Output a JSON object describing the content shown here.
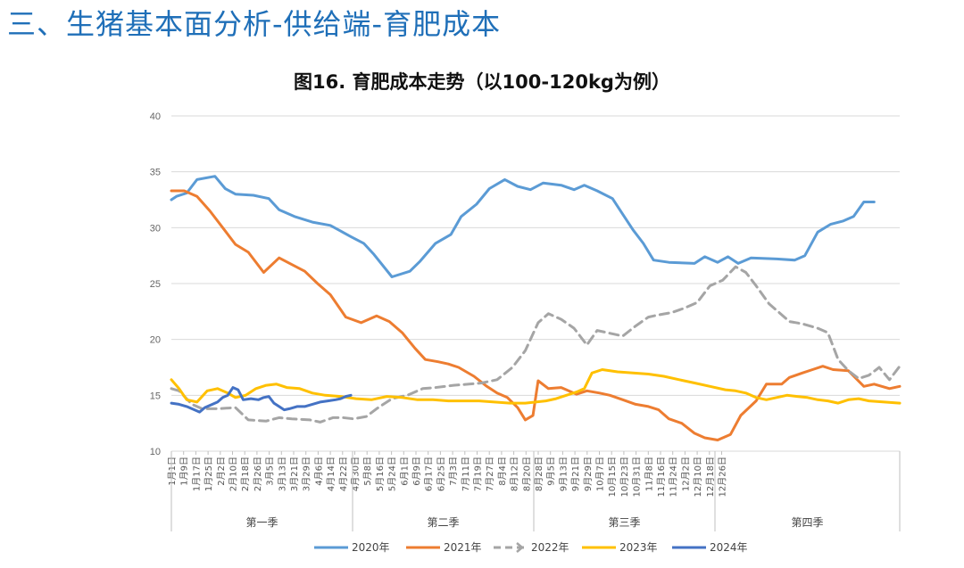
{
  "page": {
    "title": "三、生猪基本面分析-供给端-育肥成本"
  },
  "chart_data": {
    "type": "line",
    "title": "图16. 育肥成本走势（以100-120kg为例）",
    "xlabel": "",
    "ylabel": "",
    "ylim": [
      10,
      40
    ],
    "yticks": [
      10,
      15,
      20,
      25,
      30,
      35,
      40
    ],
    "grid": true,
    "x_tick_labels": [
      "1月1日",
      "1月9日",
      "1月17日",
      "1月25日",
      "2月2日",
      "2月10日",
      "2月18日",
      "2月26日",
      "3月5日",
      "3月13日",
      "3月21日",
      "3月29日",
      "4月6日",
      "4月14日",
      "4月22日",
      "4月30日",
      "5月8日",
      "5月16日",
      "5月24日",
      "6月1日",
      "6月9日",
      "6月17日",
      "6月25日",
      "7月3日",
      "7月11日",
      "7月19日",
      "7月27日",
      "8月4日",
      "8月12日",
      "8月20日",
      "8月28日",
      "9月5日",
      "9月13日",
      "9月21日",
      "9月29日",
      "10月7日",
      "10月15日",
      "10月23日",
      "10月31日",
      "11月8日",
      "11月16日",
      "11月24日",
      "12月2日",
      "12月10日",
      "12月18日",
      "12月26日"
    ],
    "seasons": [
      "第一季",
      "第二季",
      "第三季",
      "第四季"
    ],
    "legend_position": "bottom",
    "series": [
      {
        "name": "2020年",
        "color": "#5b9bd5",
        "dash": "solid",
        "width": 3,
        "points": [
          [
            0,
            32.5
          ],
          [
            2,
            32.8
          ],
          [
            6,
            33.1
          ],
          [
            10,
            34.3
          ],
          [
            17,
            34.6
          ],
          [
            21,
            33.5
          ],
          [
            25,
            33.0
          ],
          [
            32,
            32.9
          ],
          [
            38,
            32.6
          ],
          [
            42,
            31.6
          ],
          [
            48,
            31.0
          ],
          [
            55,
            30.5
          ],
          [
            62,
            30.2
          ],
          [
            66,
            29.7
          ],
          [
            70,
            29.2
          ],
          [
            75,
            28.6
          ],
          [
            79,
            27.6
          ],
          [
            86,
            25.6
          ],
          [
            93,
            26.1
          ],
          [
            97,
            27.0
          ],
          [
            103,
            28.6
          ],
          [
            109,
            29.4
          ],
          [
            113,
            31.0
          ],
          [
            119,
            32.1
          ],
          [
            124,
            33.5
          ],
          [
            130,
            34.3
          ],
          [
            135,
            33.7
          ],
          [
            140,
            33.4
          ],
          [
            145,
            34.0
          ],
          [
            152,
            33.8
          ],
          [
            157,
            33.4
          ],
          [
            161,
            33.8
          ],
          [
            166,
            33.3
          ],
          [
            172,
            32.6
          ],
          [
            176,
            31.2
          ],
          [
            180,
            29.8
          ],
          [
            184,
            28.6
          ],
          [
            188,
            27.1
          ],
          [
            194,
            26.9
          ],
          [
            204,
            26.8
          ],
          [
            208,
            27.4
          ],
          [
            213,
            26.9
          ],
          [
            217,
            27.4
          ],
          [
            221,
            26.8
          ],
          [
            226,
            27.3
          ],
          [
            236,
            27.2
          ],
          [
            243,
            27.1
          ],
          [
            247,
            27.5
          ],
          [
            252,
            29.6
          ],
          [
            257,
            30.3
          ],
          [
            262,
            30.6
          ],
          [
            266,
            31.0
          ],
          [
            270,
            32.3
          ],
          [
            274,
            32.3
          ]
        ]
      },
      {
        "name": "2021年",
        "color": "#ed7d31",
        "dash": "solid",
        "width": 3,
        "points": [
          [
            0,
            33.3
          ],
          [
            5,
            33.3
          ],
          [
            10,
            32.8
          ],
          [
            15,
            31.5
          ],
          [
            20,
            30.0
          ],
          [
            25,
            28.5
          ],
          [
            30,
            27.8
          ],
          [
            36,
            26.0
          ],
          [
            42,
            27.3
          ],
          [
            47,
            26.7
          ],
          [
            52,
            26.1
          ],
          [
            57,
            25.0
          ],
          [
            62,
            24.0
          ],
          [
            68,
            22.0
          ],
          [
            74,
            21.5
          ],
          [
            80,
            22.1
          ],
          [
            85,
            21.6
          ],
          [
            90,
            20.6
          ],
          [
            95,
            19.2
          ],
          [
            99,
            18.2
          ],
          [
            104,
            18.0
          ],
          [
            108,
            17.8
          ],
          [
            112,
            17.5
          ],
          [
            118,
            16.7
          ],
          [
            123,
            15.8
          ],
          [
            127,
            15.2
          ],
          [
            131,
            14.8
          ],
          [
            135,
            13.9
          ],
          [
            138,
            12.8
          ],
          [
            141,
            13.2
          ],
          [
            143,
            16.3
          ],
          [
            147,
            15.6
          ],
          [
            152,
            15.7
          ],
          [
            158,
            15.1
          ],
          [
            162,
            15.4
          ],
          [
            167,
            15.2
          ],
          [
            171,
            15.0
          ],
          [
            176,
            14.6
          ],
          [
            181,
            14.2
          ],
          [
            186,
            14.0
          ],
          [
            190,
            13.7
          ],
          [
            194,
            12.9
          ],
          [
            199,
            12.5
          ],
          [
            204,
            11.6
          ],
          [
            208,
            11.2
          ],
          [
            213,
            11.0
          ],
          [
            218,
            11.5
          ],
          [
            222,
            13.2
          ],
          [
            228,
            14.5
          ],
          [
            232,
            16.0
          ],
          [
            238,
            16.0
          ],
          [
            241,
            16.6
          ],
          [
            246,
            17.0
          ],
          [
            250,
            17.3
          ],
          [
            254,
            17.6
          ],
          [
            258,
            17.3
          ],
          [
            264,
            17.2
          ],
          [
            270,
            15.8
          ],
          [
            274,
            16.0
          ],
          [
            280,
            15.6
          ],
          [
            284,
            15.8
          ]
        ]
      },
      {
        "name": "2022年",
        "color": "#a5a5a5",
        "dash": "dashed",
        "width": 3,
        "points": [
          [
            0,
            15.6
          ],
          [
            3,
            15.4
          ],
          [
            8,
            14.2
          ],
          [
            12,
            13.8
          ],
          [
            18,
            13.8
          ],
          [
            25,
            13.9
          ],
          [
            30,
            12.8
          ],
          [
            37,
            12.7
          ],
          [
            42,
            13.0
          ],
          [
            47,
            12.9
          ],
          [
            54,
            12.8
          ],
          [
            58,
            12.6
          ],
          [
            63,
            13.0
          ],
          [
            67,
            13.0
          ],
          [
            71,
            12.9
          ],
          [
            76,
            13.1
          ],
          [
            80,
            13.8
          ],
          [
            86,
            14.7
          ],
          [
            92,
            15.0
          ],
          [
            98,
            15.6
          ],
          [
            103,
            15.7
          ],
          [
            110,
            15.9
          ],
          [
            116,
            16.0
          ],
          [
            121,
            16.1
          ],
          [
            127,
            16.4
          ],
          [
            133,
            17.5
          ],
          [
            138,
            19.0
          ],
          [
            143,
            21.5
          ],
          [
            147,
            22.3
          ],
          [
            152,
            21.8
          ],
          [
            157,
            21.0
          ],
          [
            162,
            19.5
          ],
          [
            166,
            20.8
          ],
          [
            170,
            20.6
          ],
          [
            176,
            20.3
          ],
          [
            181,
            21.2
          ],
          [
            186,
            22.0
          ],
          [
            190,
            22.2
          ],
          [
            195,
            22.4
          ],
          [
            200,
            22.8
          ],
          [
            205,
            23.3
          ],
          [
            210,
            24.8
          ],
          [
            215,
            25.3
          ],
          [
            220,
            26.5
          ],
          [
            224,
            26.0
          ],
          [
            228,
            24.8
          ],
          [
            233,
            23.2
          ],
          [
            237,
            22.4
          ],
          [
            241,
            21.6
          ],
          [
            246,
            21.4
          ],
          [
            252,
            21.0
          ],
          [
            256,
            20.6
          ],
          [
            260,
            18.2
          ],
          [
            264,
            17.2
          ],
          [
            268,
            16.5
          ],
          [
            272,
            16.8
          ],
          [
            276,
            17.5
          ],
          [
            280,
            16.4
          ],
          [
            284,
            17.6
          ]
        ]
      },
      {
        "name": "2023年",
        "color": "#ffc000",
        "dash": "solid",
        "width": 3,
        "points": [
          [
            0,
            16.4
          ],
          [
            3,
            15.6
          ],
          [
            6,
            14.6
          ],
          [
            10,
            14.4
          ],
          [
            14,
            15.4
          ],
          [
            18,
            15.6
          ],
          [
            22,
            15.2
          ],
          [
            25,
            14.8
          ],
          [
            29,
            15.0
          ],
          [
            33,
            15.6
          ],
          [
            37,
            15.9
          ],
          [
            41,
            16.0
          ],
          [
            45,
            15.7
          ],
          [
            50,
            15.6
          ],
          [
            55,
            15.2
          ],
          [
            60,
            15.0
          ],
          [
            66,
            14.9
          ],
          [
            72,
            14.7
          ],
          [
            78,
            14.6
          ],
          [
            84,
            14.9
          ],
          [
            90,
            14.8
          ],
          [
            96,
            14.6
          ],
          [
            102,
            14.6
          ],
          [
            108,
            14.5
          ],
          [
            114,
            14.5
          ],
          [
            120,
            14.5
          ],
          [
            126,
            14.4
          ],
          [
            132,
            14.3
          ],
          [
            138,
            14.3
          ],
          [
            142,
            14.4
          ],
          [
            146,
            14.5
          ],
          [
            150,
            14.7
          ],
          [
            154,
            15.0
          ],
          [
            158,
            15.3
          ],
          [
            161,
            15.6
          ],
          [
            164,
            17.0
          ],
          [
            168,
            17.3
          ],
          [
            174,
            17.1
          ],
          [
            180,
            17.0
          ],
          [
            186,
            16.9
          ],
          [
            192,
            16.7
          ],
          [
            198,
            16.4
          ],
          [
            204,
            16.1
          ],
          [
            210,
            15.8
          ],
          [
            216,
            15.5
          ],
          [
            220,
            15.4
          ],
          [
            224,
            15.2
          ],
          [
            228,
            14.8
          ],
          [
            232,
            14.6
          ],
          [
            236,
            14.8
          ],
          [
            240,
            15.0
          ],
          [
            244,
            14.9
          ],
          [
            248,
            14.8
          ],
          [
            252,
            14.6
          ],
          [
            256,
            14.5
          ],
          [
            260,
            14.3
          ],
          [
            264,
            14.6
          ],
          [
            268,
            14.7
          ],
          [
            272,
            14.5
          ],
          [
            278,
            14.4
          ],
          [
            284,
            14.3
          ]
        ]
      },
      {
        "name": "2024年",
        "color": "#4472c4",
        "dash": "solid",
        "width": 3,
        "points": [
          [
            0,
            14.3
          ],
          [
            3,
            14.2
          ],
          [
            6,
            14.0
          ],
          [
            9,
            13.7
          ],
          [
            11,
            13.5
          ],
          [
            13,
            13.9
          ],
          [
            16,
            14.2
          ],
          [
            18,
            14.4
          ],
          [
            20,
            14.8
          ],
          [
            22,
            15.0
          ],
          [
            24,
            15.7
          ],
          [
            26,
            15.5
          ],
          [
            28,
            14.6
          ],
          [
            31,
            14.7
          ],
          [
            34,
            14.6
          ],
          [
            36,
            14.8
          ],
          [
            38,
            14.9
          ],
          [
            40,
            14.3
          ],
          [
            42,
            14.0
          ],
          [
            44,
            13.7
          ],
          [
            46,
            13.8
          ],
          [
            49,
            14.0
          ],
          [
            52,
            14.0
          ],
          [
            55,
            14.2
          ],
          [
            58,
            14.4
          ],
          [
            61,
            14.5
          ],
          [
            64,
            14.6
          ],
          [
            66,
            14.7
          ],
          [
            68,
            14.9
          ],
          [
            70,
            15.0
          ]
        ]
      }
    ]
  }
}
